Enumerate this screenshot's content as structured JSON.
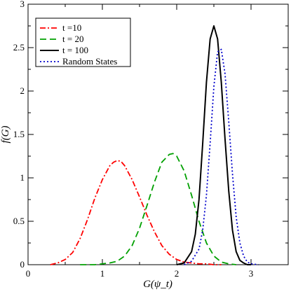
{
  "chart_data": {
    "type": "line",
    "xlabel": "G(ψ_t)",
    "ylabel": "f(G)",
    "xlim": [
      0,
      3.5
    ],
    "ylim": [
      0,
      3
    ],
    "x_ticks": [
      "0",
      "1",
      "2",
      "3"
    ],
    "y_ticks": [
      "0",
      "0.5",
      "1",
      "1.5",
      "2",
      "2.5",
      "3"
    ],
    "grid": false,
    "legend_position": "top-left",
    "series": [
      {
        "name": "t =10",
        "color": "#ff0000",
        "style": "dash-dot",
        "x": [
          0.3,
          0.4,
          0.5,
          0.6,
          0.7,
          0.8,
          0.9,
          1.0,
          1.1,
          1.15,
          1.2,
          1.25,
          1.3,
          1.4,
          1.5,
          1.6,
          1.7,
          1.8,
          1.9,
          2.0,
          2.1,
          2.2,
          2.3,
          2.4,
          2.5,
          2.6
        ],
        "y": [
          0.0,
          0.02,
          0.06,
          0.14,
          0.3,
          0.52,
          0.77,
          0.98,
          1.14,
          1.18,
          1.2,
          1.19,
          1.14,
          0.98,
          0.78,
          0.57,
          0.38,
          0.22,
          0.12,
          0.06,
          0.03,
          0.02,
          0.01,
          0.01,
          0.0,
          0.0
        ]
      },
      {
        "name": "t = 20",
        "color": "#00a000",
        "style": "dashed",
        "x": [
          0.7,
          0.9,
          1.1,
          1.2,
          1.3,
          1.4,
          1.5,
          1.6,
          1.7,
          1.8,
          1.9,
          1.95,
          2.0,
          2.1,
          2.2,
          2.3,
          2.4,
          2.5,
          2.6,
          2.7,
          2.8
        ],
        "y": [
          0.0,
          0.0,
          0.02,
          0.04,
          0.1,
          0.22,
          0.42,
          0.68,
          0.95,
          1.18,
          1.27,
          1.28,
          1.25,
          1.08,
          0.8,
          0.5,
          0.25,
          0.1,
          0.03,
          0.01,
          0.0
        ]
      },
      {
        "name": "t = 100",
        "color": "#000000",
        "style": "solid",
        "x": [
          2.0,
          2.1,
          2.2,
          2.25,
          2.3,
          2.35,
          2.4,
          2.45,
          2.5,
          2.55,
          2.6,
          2.65,
          2.7,
          2.75,
          2.8,
          2.85,
          2.9,
          2.95,
          3.0
        ],
        "y": [
          0.0,
          0.02,
          0.15,
          0.35,
          0.75,
          1.4,
          2.1,
          2.6,
          2.75,
          2.6,
          2.1,
          1.45,
          0.85,
          0.4,
          0.15,
          0.05,
          0.02,
          0.0,
          0.0
        ]
      },
      {
        "name": "Random States",
        "color": "#0000cc",
        "style": "dotted",
        "x": [
          2.1,
          2.2,
          2.3,
          2.35,
          2.4,
          2.45,
          2.5,
          2.55,
          2.6,
          2.65,
          2.7,
          2.75,
          2.8,
          2.85,
          2.9,
          2.95,
          3.0,
          3.1
        ],
        "y": [
          0.0,
          0.04,
          0.18,
          0.4,
          0.8,
          1.4,
          2.05,
          2.45,
          2.48,
          2.2,
          1.65,
          1.05,
          0.55,
          0.25,
          0.1,
          0.03,
          0.01,
          0.0
        ]
      }
    ]
  }
}
